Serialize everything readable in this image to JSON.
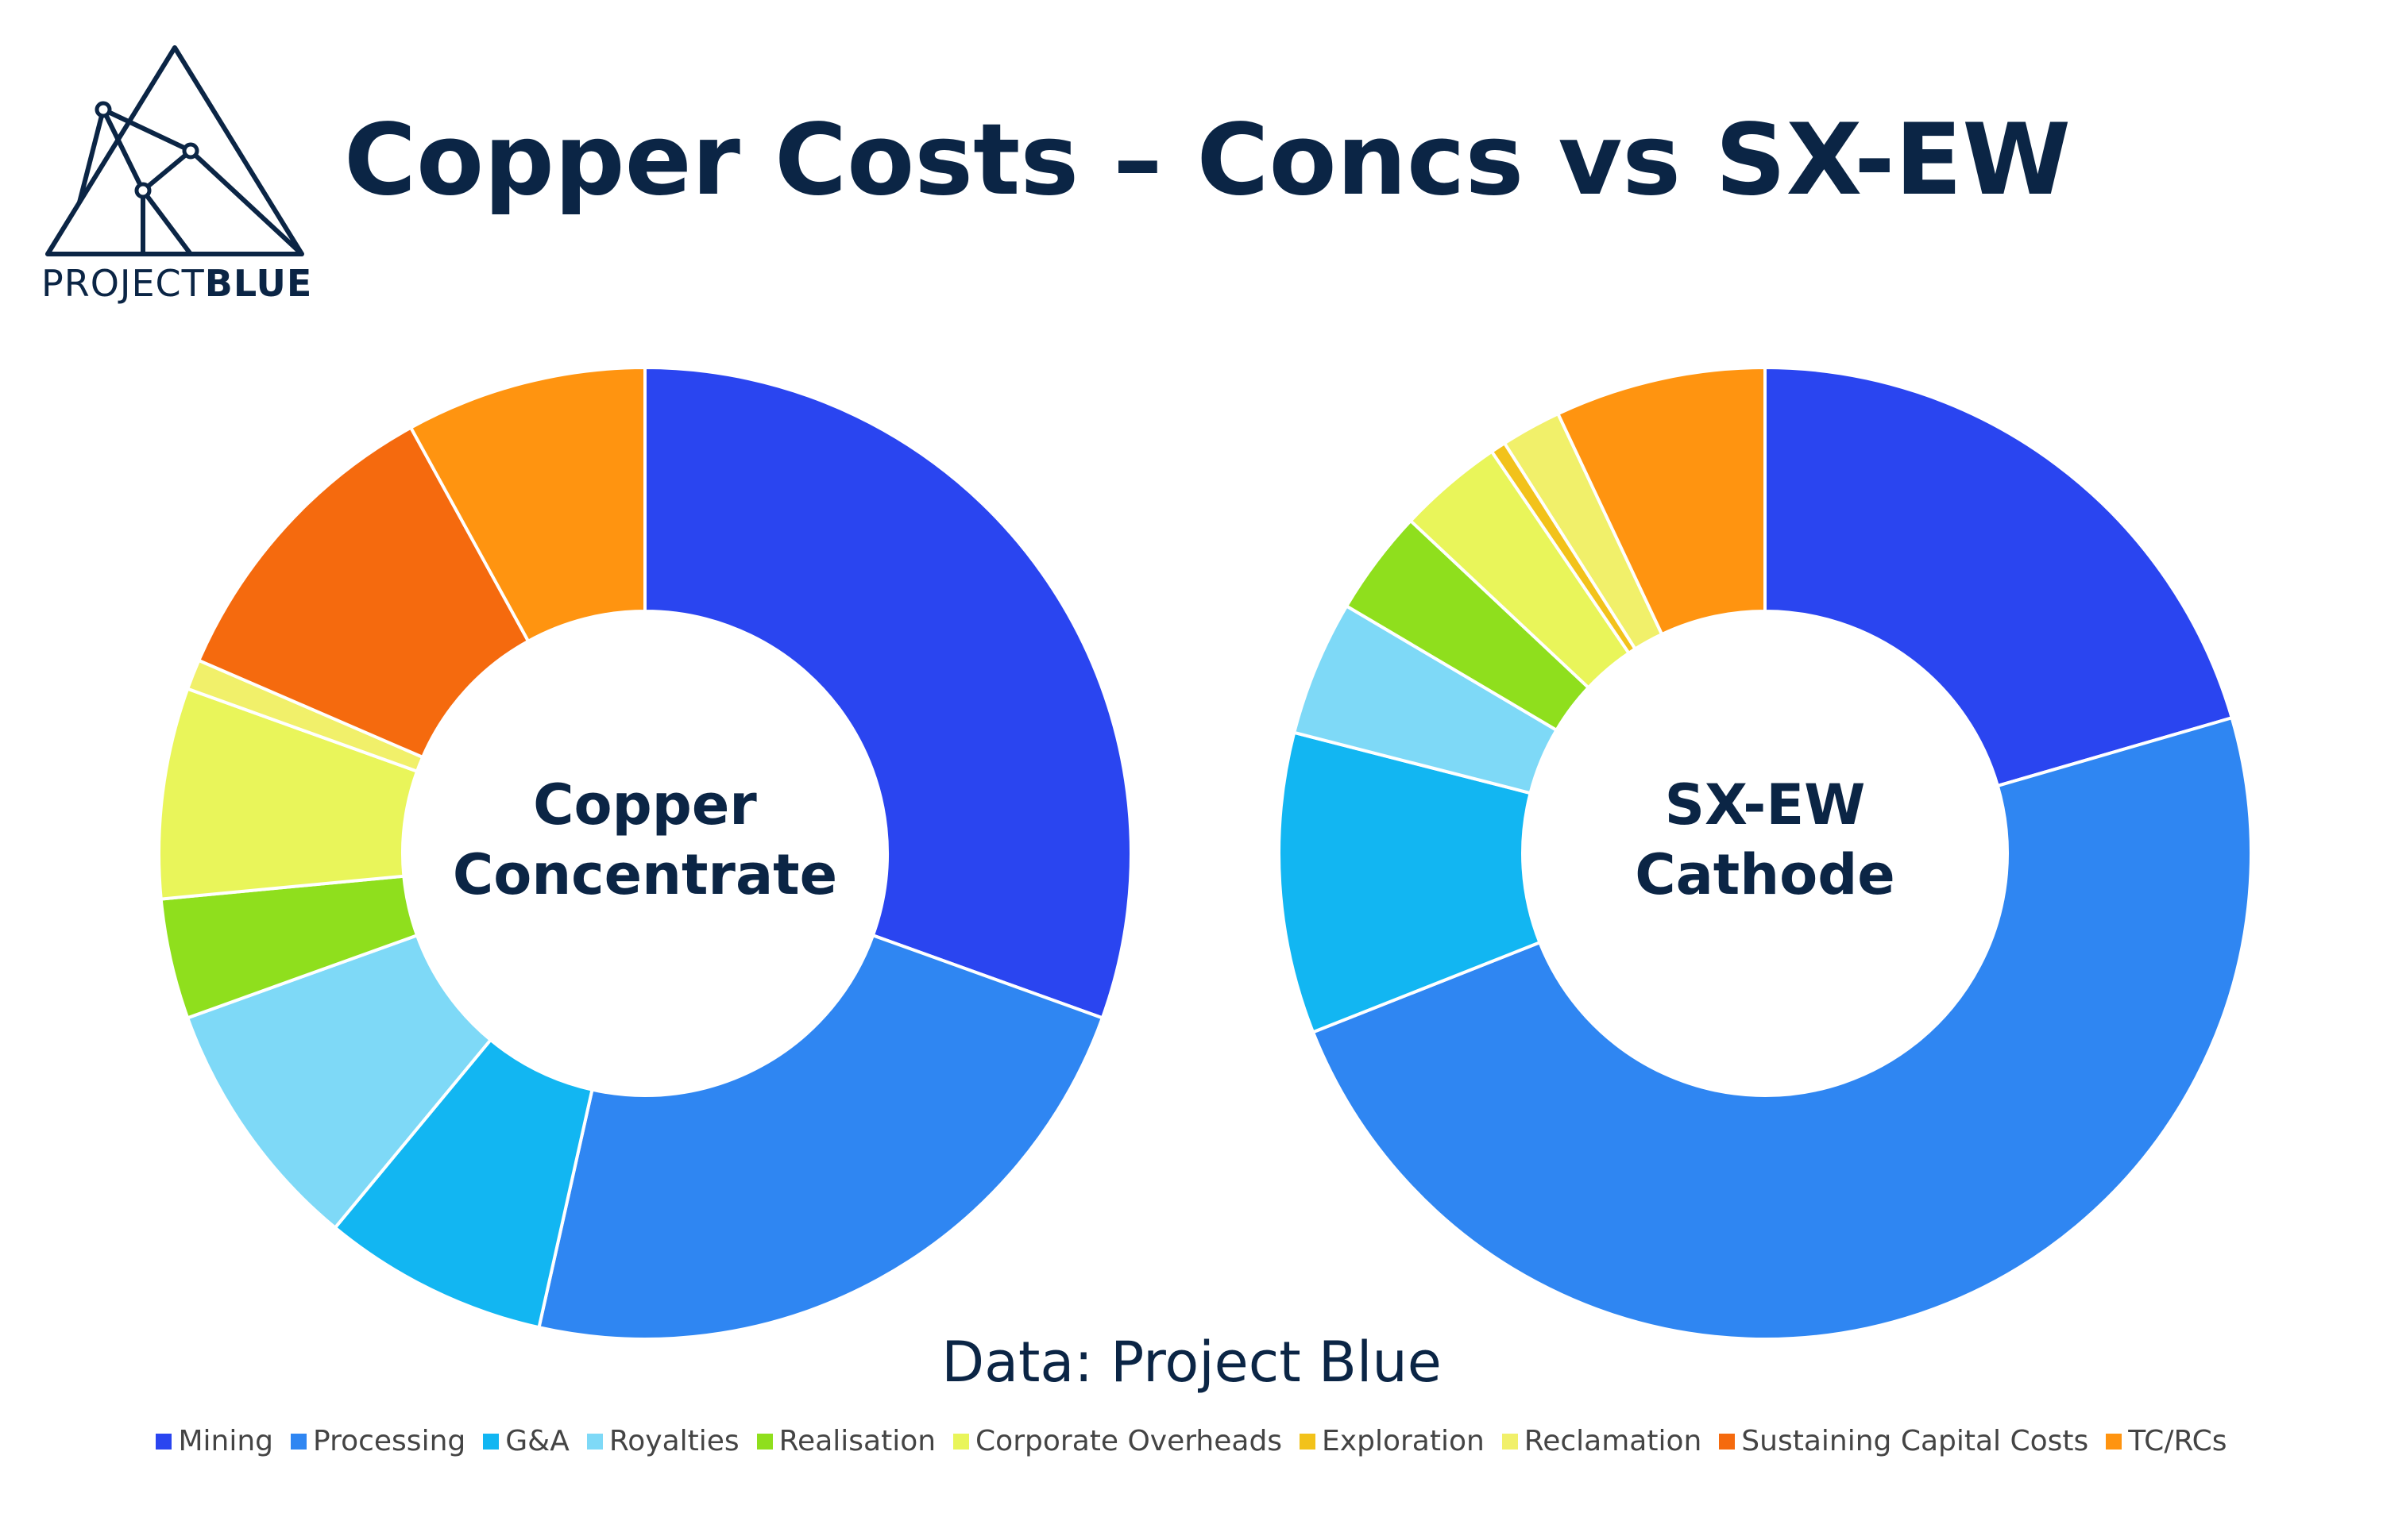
{
  "logo": {
    "text_light": "PROJECT",
    "text_bold": "BLUE"
  },
  "title": "Copper Costs – Concs vs SX-EW",
  "caption": "Data: Project Blue",
  "categories": [
    "Mining",
    "Processing",
    "G&A",
    "Royalties",
    "Realisation",
    "Corporate Overheads",
    "Exploration",
    "Reclamation",
    "Sustaining Capital Costs",
    "TC/RCs"
  ],
  "colors": [
    "#2a45f0",
    "#2f86f2",
    "#12b6f2",
    "#7ed9f7",
    "#8fdf1d",
    "#e9f55a",
    "#f2c21a",
    "#f1f06a",
    "#f56a0e",
    "#ff9410"
  ],
  "chart_data": [
    {
      "type": "pie",
      "center_label": "Copper\nConcentrate",
      "categories": [
        "Mining",
        "Processing",
        "G&A",
        "Royalties",
        "Realisation",
        "Corporate Overheads",
        "Exploration",
        "Reclamation",
        "Sustaining Capital Costs",
        "TC/RCs"
      ],
      "values": [
        30.5,
        23.0,
        7.5,
        8.5,
        4.0,
        7.0,
        0.0,
        1.0,
        10.5,
        8.0
      ]
    },
    {
      "type": "pie",
      "center_label": "SX-EW\nCathode",
      "categories": [
        "Mining",
        "Processing",
        "G&A",
        "Royalties",
        "Realisation",
        "Corporate Overheads",
        "Exploration",
        "Reclamation",
        "Sustaining Capital Costs",
        "TC/RCs"
      ],
      "values": [
        20.5,
        48.5,
        10.0,
        4.5,
        3.5,
        3.5,
        0.5,
        2.0,
        0.0,
        7.0
      ]
    }
  ]
}
